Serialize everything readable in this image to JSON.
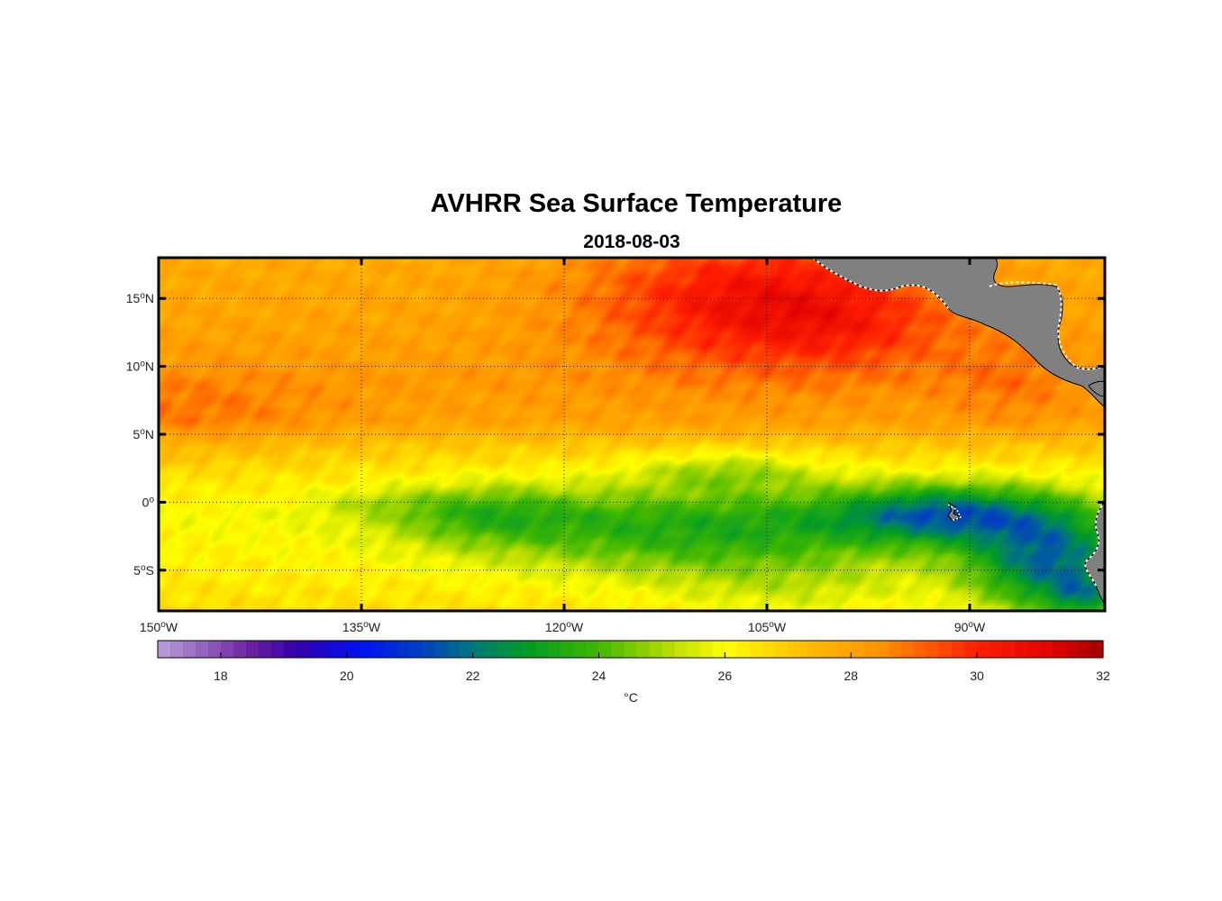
{
  "title": "AVHRR Sea Surface Temperature",
  "subtitle": "2018-08-03",
  "chart_data": {
    "type": "heatmap",
    "variable": "Sea surface temperature",
    "lon_range": [
      -150,
      -80
    ],
    "lat_range": [
      -8,
      18
    ],
    "x_ticks": [
      {
        "value": -150,
        "num": "150",
        "sup": "o",
        "hemi": "W"
      },
      {
        "value": -135,
        "num": "135",
        "sup": "o",
        "hemi": "W"
      },
      {
        "value": -120,
        "num": "120",
        "sup": "o",
        "hemi": "W"
      },
      {
        "value": -105,
        "num": "105",
        "sup": "o",
        "hemi": "W"
      },
      {
        "value": -90,
        "num": "90",
        "sup": "o",
        "hemi": "W"
      }
    ],
    "y_ticks": [
      {
        "value": 15,
        "num": "15",
        "sup": "o",
        "hemi": "N"
      },
      {
        "value": 10,
        "num": "10",
        "sup": "o",
        "hemi": "N"
      },
      {
        "value": 5,
        "num": "5",
        "sup": "o",
        "hemi": "N"
      },
      {
        "value": 0,
        "num": "0",
        "sup": "o",
        "hemi": ""
      },
      {
        "value": -5,
        "num": "5",
        "sup": "o",
        "hemi": "S"
      }
    ],
    "grid": true,
    "grid_style": "dotted",
    "colorbar": {
      "range": [
        17,
        32
      ],
      "ticks": [
        18,
        20,
        22,
        24,
        26,
        28,
        30,
        32
      ],
      "label": "°C",
      "stops": [
        {
          "v": 17,
          "c": "#b9a0d8"
        },
        {
          "v": 18.5,
          "c": "#6a1fa0"
        },
        {
          "v": 19.2,
          "c": "#3300a8"
        },
        {
          "v": 20.2,
          "c": "#0010f0"
        },
        {
          "v": 21.2,
          "c": "#0040c0"
        },
        {
          "v": 22,
          "c": "#00787a"
        },
        {
          "v": 22.8,
          "c": "#009a28"
        },
        {
          "v": 24,
          "c": "#40b800"
        },
        {
          "v": 25.2,
          "c": "#c0e000"
        },
        {
          "v": 26,
          "c": "#ffff00"
        },
        {
          "v": 27.2,
          "c": "#ffc000"
        },
        {
          "v": 28.5,
          "c": "#ff9000"
        },
        {
          "v": 30,
          "c": "#ff2000"
        },
        {
          "v": 31.2,
          "c": "#e00000"
        },
        {
          "v": 32,
          "c": "#a00000"
        }
      ]
    },
    "field_profile": [
      {
        "lat": 18,
        "sst": 27.8
      },
      {
        "lat": 14,
        "sst": 27.9
      },
      {
        "lat": 9,
        "sst": 28.2
      },
      {
        "lat": 6,
        "sst": 28.0
      },
      {
        "lat": 4,
        "sst": 27.0
      },
      {
        "lat": 2,
        "sst": 26.5
      },
      {
        "lat": -1,
        "sst": 26.0
      },
      {
        "lat": -5,
        "sst": 26.3
      },
      {
        "lat": -8,
        "sst": 26.6
      }
    ],
    "anomalies": [
      {
        "name": "mexico-warm-pool",
        "lon": -106,
        "lat": 15,
        "rx": 12,
        "ry": 5,
        "delta": 2.6
      },
      {
        "name": "warm-pool-east",
        "lon": -98,
        "lat": 13,
        "rx": 8,
        "ry": 3.5,
        "delta": 0.9
      },
      {
        "name": "central-america-coast",
        "lon": -87,
        "lat": 9,
        "rx": 5,
        "ry": 3.5,
        "delta": 0.7
      },
      {
        "name": "itcz-west-warm",
        "lon": -148,
        "lat": 6.5,
        "rx": 10,
        "ry": 3,
        "delta": 0.8
      },
      {
        "name": "cold-tongue-main",
        "lon": -109,
        "lat": -1.5,
        "rx": 18,
        "ry": 3,
        "delta": -2.0
      },
      {
        "name": "cold-tongue-west",
        "lon": -126,
        "lat": -0.8,
        "rx": 7,
        "ry": 2.2,
        "delta": -1.6
      },
      {
        "name": "cold-tongue-south",
        "lon": -110,
        "lat": -3.5,
        "rx": 16,
        "ry": 3,
        "delta": -0.9
      },
      {
        "name": "tropical-instability-wave",
        "lon": -108,
        "lat": 2.3,
        "rx": 7,
        "ry": 1.5,
        "delta": -1.4
      },
      {
        "name": "galapagos-cold",
        "lon": -92,
        "lat": -0.8,
        "rx": 8,
        "ry": 2.2,
        "delta": -3.5
      },
      {
        "name": "peru-upwelling",
        "lon": -84,
        "lat": -4.5,
        "rx": 6,
        "ry": 4,
        "delta": -4.3
      },
      {
        "name": "peru-coast-core",
        "lon": -81.5,
        "lat": -7,
        "rx": 2.5,
        "ry": 1.5,
        "delta": -2.0
      },
      {
        "name": "south-central-green",
        "lon": -103,
        "lat": -6.5,
        "rx": 10,
        "ry": 2.5,
        "delta": -0.8
      },
      {
        "name": "equator-green-link",
        "lon": -134,
        "lat": 0,
        "rx": 5,
        "ry": 1,
        "delta": -0.6
      }
    ],
    "land": {
      "fill": "#808080",
      "coast": "#ffffff",
      "outline": "#000000"
    }
  }
}
